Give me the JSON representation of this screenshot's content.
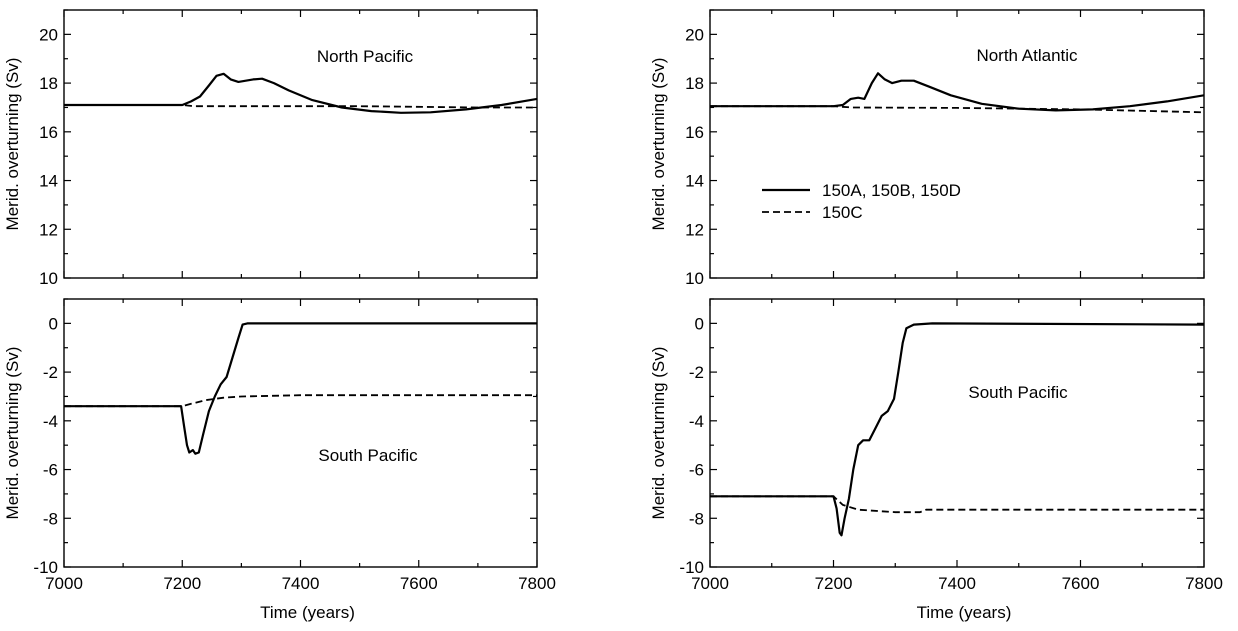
{
  "colors": {
    "line": "#000000",
    "background": "#ffffff"
  },
  "chart_data": [
    {
      "type": "line",
      "title": "North Pacific",
      "ylabel": "Merid. overturning (Sv)",
      "xlabel": "",
      "xlim": [
        7000,
        7800
      ],
      "ylim": [
        10,
        21
      ],
      "xticks": [
        7000,
        7200,
        7400,
        7600,
        7800
      ],
      "yticks": [
        10,
        12,
        14,
        16,
        18,
        20
      ],
      "x_tick_labels_shown": false,
      "legend": null,
      "series": [
        {
          "style": "solid",
          "points": [
            [
              7000,
              17.1
            ],
            [
              7200,
              17.1
            ],
            [
              7215,
              17.25
            ],
            [
              7230,
              17.45
            ],
            [
              7245,
              17.9
            ],
            [
              7258,
              18.3
            ],
            [
              7270,
              18.38
            ],
            [
              7282,
              18.15
            ],
            [
              7295,
              18.05
            ],
            [
              7320,
              18.15
            ],
            [
              7335,
              18.18
            ],
            [
              7355,
              18.0
            ],
            [
              7380,
              17.7
            ],
            [
              7420,
              17.3
            ],
            [
              7470,
              17.0
            ],
            [
              7520,
              16.85
            ],
            [
              7570,
              16.78
            ],
            [
              7620,
              16.8
            ],
            [
              7680,
              16.92
            ],
            [
              7740,
              17.1
            ],
            [
              7800,
              17.35
            ]
          ]
        },
        {
          "style": "dashed",
          "points": [
            [
              7000,
              17.1
            ],
            [
              7200,
              17.1
            ],
            [
              7220,
              17.05
            ],
            [
              7300,
              17.05
            ],
            [
              7500,
              17.05
            ],
            [
              7700,
              17.0
            ],
            [
              7800,
              17.0
            ]
          ]
        }
      ]
    },
    {
      "type": "line",
      "title": "North Atlantic",
      "ylabel": "Merid. overturning (Sv)",
      "xlabel": "",
      "xlim": [
        7000,
        7800
      ],
      "ylim": [
        10,
        21
      ],
      "xticks": [
        7000,
        7200,
        7400,
        7600,
        7800
      ],
      "yticks": [
        10,
        12,
        14,
        16,
        18,
        20
      ],
      "x_tick_labels_shown": false,
      "legend": {
        "position": "center-left",
        "entries": [
          {
            "label": "150A, 150B, 150D",
            "style": "solid"
          },
          {
            "label": "150C",
            "style": "dashed"
          }
        ]
      },
      "series": [
        {
          "style": "solid",
          "points": [
            [
              7000,
              17.05
            ],
            [
              7200,
              17.05
            ],
            [
              7215,
              17.1
            ],
            [
              7228,
              17.35
            ],
            [
              7240,
              17.4
            ],
            [
              7250,
              17.35
            ],
            [
              7262,
              18.0
            ],
            [
              7272,
              18.4
            ],
            [
              7283,
              18.15
            ],
            [
              7295,
              18.0
            ],
            [
              7310,
              18.1
            ],
            [
              7330,
              18.1
            ],
            [
              7355,
              17.85
            ],
            [
              7390,
              17.5
            ],
            [
              7440,
              17.15
            ],
            [
              7500,
              16.95
            ],
            [
              7560,
              16.88
            ],
            [
              7620,
              16.92
            ],
            [
              7680,
              17.05
            ],
            [
              7740,
              17.25
            ],
            [
              7800,
              17.5
            ]
          ]
        },
        {
          "style": "dashed",
          "points": [
            [
              7000,
              17.05
            ],
            [
              7200,
              17.05
            ],
            [
              7230,
              17.0
            ],
            [
              7400,
              16.98
            ],
            [
              7600,
              16.92
            ],
            [
              7800,
              16.8
            ]
          ]
        }
      ]
    },
    {
      "type": "line",
      "title": "South Pacific",
      "ylabel": "Merid. overturning (Sv)",
      "xlabel": "Time (years)",
      "xlim": [
        7000,
        7800
      ],
      "ylim": [
        -10,
        1
      ],
      "xticks": [
        7000,
        7200,
        7400,
        7600,
        7800
      ],
      "yticks": [
        -10,
        -8,
        -6,
        -4,
        -2,
        0
      ],
      "x_tick_labels_shown": true,
      "legend": null,
      "series": [
        {
          "style": "solid",
          "points": [
            [
              7000,
              -3.4
            ],
            [
              7198,
              -3.4
            ],
            [
              7203,
              -4.2
            ],
            [
              7208,
              -5.0
            ],
            [
              7212,
              -5.3
            ],
            [
              7218,
              -5.2
            ],
            [
              7222,
              -5.35
            ],
            [
              7228,
              -5.3
            ],
            [
              7235,
              -4.6
            ],
            [
              7245,
              -3.6
            ],
            [
              7255,
              -3.0
            ],
            [
              7265,
              -2.5
            ],
            [
              7275,
              -2.2
            ],
            [
              7285,
              -1.4
            ],
            [
              7295,
              -0.6
            ],
            [
              7302,
              -0.05
            ],
            [
              7310,
              0.0
            ],
            [
              7800,
              0.0
            ]
          ]
        },
        {
          "style": "dashed",
          "points": [
            [
              7000,
              -3.4
            ],
            [
              7200,
              -3.4
            ],
            [
              7215,
              -3.3
            ],
            [
              7240,
              -3.15
            ],
            [
              7270,
              -3.05
            ],
            [
              7300,
              -3.0
            ],
            [
              7400,
              -2.95
            ],
            [
              7600,
              -2.95
            ],
            [
              7800,
              -2.95
            ]
          ]
        }
      ]
    },
    {
      "type": "line",
      "title": "South Pacific",
      "ylabel": "Merid. overturning (Sv)",
      "xlabel": "Time (years)",
      "xlim": [
        7000,
        7800
      ],
      "ylim": [
        -10,
        1
      ],
      "xticks": [
        7000,
        7200,
        7400,
        7600,
        7800
      ],
      "yticks": [
        -10,
        -8,
        -6,
        -4,
        -2,
        0
      ],
      "x_tick_labels_shown": true,
      "legend": null,
      "series": [
        {
          "style": "solid",
          "points": [
            [
              7000,
              -7.1
            ],
            [
              7200,
              -7.1
            ],
            [
              7205,
              -7.6
            ],
            [
              7210,
              -8.6
            ],
            [
              7213,
              -8.7
            ],
            [
              7218,
              -8.0
            ],
            [
              7225,
              -7.2
            ],
            [
              7232,
              -6.0
            ],
            [
              7240,
              -5.0
            ],
            [
              7248,
              -4.8
            ],
            [
              7258,
              -4.8
            ],
            [
              7268,
              -4.3
            ],
            [
              7278,
              -3.8
            ],
            [
              7288,
              -3.6
            ],
            [
              7298,
              -3.1
            ],
            [
              7305,
              -2.0
            ],
            [
              7312,
              -0.8
            ],
            [
              7318,
              -0.2
            ],
            [
              7330,
              -0.05
            ],
            [
              7360,
              0.0
            ],
            [
              7800,
              -0.05
            ]
          ]
        },
        {
          "style": "dashed",
          "points": [
            [
              7000,
              -7.1
            ],
            [
              7200,
              -7.1
            ],
            [
              7215,
              -7.45
            ],
            [
              7240,
              -7.65
            ],
            [
              7300,
              -7.75
            ],
            [
              7340,
              -7.75
            ],
            [
              7350,
              -7.65
            ],
            [
              7500,
              -7.65
            ],
            [
              7800,
              -7.65
            ]
          ]
        }
      ]
    }
  ]
}
